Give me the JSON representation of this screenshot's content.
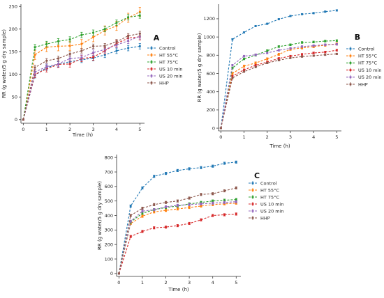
{
  "figure": {
    "series_meta": [
      {
        "name": "Control",
        "color": "#1f77b4"
      },
      {
        "name": "HT 55°C",
        "color": "#ff7f0e"
      },
      {
        "name": "HT 75°C",
        "color": "#2ca02c"
      },
      {
        "name": "US 10 min",
        "color": "#d62728"
      },
      {
        "name": "US 20 min",
        "color": "#9467bd"
      },
      {
        "name": "HHP",
        "color": "#8c564b"
      }
    ]
  },
  "chart_data": [
    {
      "type": "line",
      "panel": "A",
      "xlabel": "Time (h)",
      "ylabel": "RR (g water/5 g dry sample)",
      "xlim": [
        -0.1,
        5.2
      ],
      "ylim": [
        -8,
        255
      ],
      "xticks": [
        0,
        1,
        2,
        3,
        4,
        5
      ],
      "yticks": [
        0,
        50,
        100,
        150,
        200,
        250
      ],
      "grid": false,
      "legend_position": "right",
      "x": [
        0,
        0.5,
        1,
        1.5,
        2,
        2.5,
        3,
        3.5,
        4,
        4.5,
        5
      ],
      "series": [
        {
          "name": "Control",
          "values": [
            0,
            98,
            115,
            122,
            128,
            132,
            136,
            143,
            152,
            158,
            162
          ],
          "error": [
            0,
            6,
            6,
            6,
            6,
            6,
            6,
            6,
            6,
            6,
            6
          ]
        },
        {
          "name": "HT 55°C",
          "values": [
            0,
            143,
            160,
            162,
            163,
            167,
            182,
            197,
            207,
            225,
            238
          ],
          "error": [
            0,
            10,
            10,
            10,
            10,
            10,
            10,
            10,
            10,
            10,
            10
          ]
        },
        {
          "name": "HT 75°C",
          "values": [
            0,
            160,
            167,
            173,
            177,
            187,
            192,
            200,
            214,
            226,
            230
          ],
          "error": [
            0,
            6,
            6,
            6,
            6,
            6,
            6,
            6,
            6,
            6,
            6
          ]
        },
        {
          "name": "US 10 min",
          "values": [
            0,
            100,
            112,
            122,
            123,
            135,
            138,
            152,
            168,
            180,
            183
          ],
          "error": [
            0,
            7,
            7,
            7,
            7,
            7,
            7,
            7,
            7,
            7,
            7
          ]
        },
        {
          "name": "US 20 min",
          "values": [
            0,
            105,
            117,
            123,
            135,
            137,
            148,
            155,
            165,
            174,
            184
          ],
          "error": [
            0,
            6,
            6,
            6,
            6,
            6,
            6,
            6,
            6,
            6,
            6
          ]
        },
        {
          "name": "HHP",
          "values": [
            0,
            115,
            130,
            135,
            145,
            152,
            162,
            163,
            172,
            185,
            190
          ],
          "error": [
            0,
            5,
            5,
            5,
            5,
            5,
            5,
            5,
            5,
            5,
            5
          ]
        }
      ]
    },
    {
      "type": "line",
      "panel": "B",
      "xlabel": "Time (h)",
      "ylabel": "RR (g water/5 g dry sample)",
      "xlim": [
        -0.1,
        5.2
      ],
      "ylim": [
        -30,
        1360
      ],
      "xticks": [
        0,
        1,
        2,
        3,
        4,
        5
      ],
      "yticks": [
        0,
        200,
        400,
        600,
        800,
        1000,
        1200
      ],
      "grid": false,
      "legend_position": "right",
      "x": [
        0,
        0.5,
        1,
        1.5,
        2,
        2.5,
        3,
        3.5,
        4,
        4.5,
        5
      ],
      "series": [
        {
          "name": "Control",
          "values": [
            0,
            975,
            1050,
            1120,
            1145,
            1195,
            1230,
            1250,
            1262,
            1278,
            1292
          ],
          "error": [
            0,
            8,
            8,
            8,
            8,
            8,
            8,
            8,
            8,
            8,
            8
          ]
        },
        {
          "name": "HT 55°C",
          "values": [
            0,
            600,
            680,
            715,
            760,
            810,
            865,
            880,
            895,
            910,
            925
          ],
          "error": [
            0,
            12,
            12,
            12,
            12,
            12,
            12,
            12,
            12,
            12,
            12
          ]
        },
        {
          "name": "HT 75°C",
          "values": [
            0,
            660,
            760,
            800,
            850,
            895,
            915,
            940,
            945,
            955,
            960
          ],
          "error": [
            0,
            10,
            10,
            10,
            10,
            10,
            10,
            10,
            10,
            10,
            10
          ]
        },
        {
          "name": "US 10 min",
          "values": [
            0,
            570,
            640,
            690,
            725,
            765,
            790,
            810,
            825,
            835,
            855
          ],
          "error": [
            0,
            10,
            10,
            10,
            10,
            10,
            10,
            10,
            10,
            10,
            10
          ]
        },
        {
          "name": "US 20 min",
          "values": [
            0,
            690,
            790,
            805,
            825,
            855,
            875,
            895,
            905,
            915,
            920
          ],
          "error": [
            0,
            10,
            10,
            10,
            10,
            10,
            10,
            10,
            10,
            10,
            10
          ]
        },
        {
          "name": "HHP",
          "values": [
            0,
            550,
            620,
            670,
            715,
            745,
            770,
            785,
            795,
            805,
            815
          ],
          "error": [
            0,
            8,
            8,
            8,
            8,
            8,
            8,
            8,
            8,
            8,
            8
          ]
        }
      ]
    },
    {
      "type": "line",
      "panel": "C",
      "xlabel": "Time (h)",
      "ylabel": "RR (g water/5 g dry sample)",
      "xlim": [
        -0.1,
        5.2
      ],
      "ylim": [
        -20,
        820
      ],
      "xticks": [
        0,
        1,
        2,
        3,
        4,
        5
      ],
      "yticks": [
        0,
        100,
        200,
        300,
        400,
        500,
        600,
        700,
        800
      ],
      "grid": false,
      "legend_position": "right",
      "x": [
        0,
        0.5,
        1,
        1.5,
        2,
        2.5,
        3,
        3.5,
        4,
        4.5,
        5
      ],
      "series": [
        {
          "name": "Control",
          "values": [
            0,
            465,
            590,
            670,
            690,
            710,
            722,
            730,
            740,
            760,
            768
          ],
          "error": [
            0,
            8,
            8,
            8,
            8,
            8,
            8,
            8,
            8,
            8,
            8
          ]
        },
        {
          "name": "HT 55°C",
          "values": [
            0,
            345,
            395,
            425,
            435,
            445,
            455,
            465,
            475,
            480,
            485
          ],
          "error": [
            0,
            8,
            8,
            8,
            8,
            8,
            8,
            8,
            8,
            8,
            8
          ]
        },
        {
          "name": "HT 75°C",
          "values": [
            0,
            355,
            415,
            440,
            455,
            465,
            480,
            490,
            500,
            505,
            510
          ],
          "error": [
            0,
            8,
            8,
            8,
            8,
            8,
            8,
            8,
            8,
            8,
            8
          ]
        },
        {
          "name": "US 10 min",
          "values": [
            0,
            255,
            290,
            315,
            320,
            330,
            345,
            370,
            400,
            405,
            410
          ],
          "error": [
            0,
            8,
            8,
            8,
            8,
            8,
            8,
            8,
            8,
            8,
            8
          ]
        },
        {
          "name": "US 20 min",
          "values": [
            0,
            360,
            430,
            440,
            460,
            470,
            475,
            480,
            485,
            490,
            495
          ],
          "error": [
            0,
            8,
            8,
            8,
            8,
            8,
            8,
            8,
            8,
            8,
            8
          ]
        },
        {
          "name": "HHP",
          "values": [
            0,
            400,
            450,
            475,
            490,
            500,
            520,
            545,
            550,
            570,
            590
          ],
          "error": [
            0,
            8,
            8,
            8,
            8,
            8,
            8,
            8,
            8,
            8,
            8
          ]
        }
      ]
    }
  ]
}
